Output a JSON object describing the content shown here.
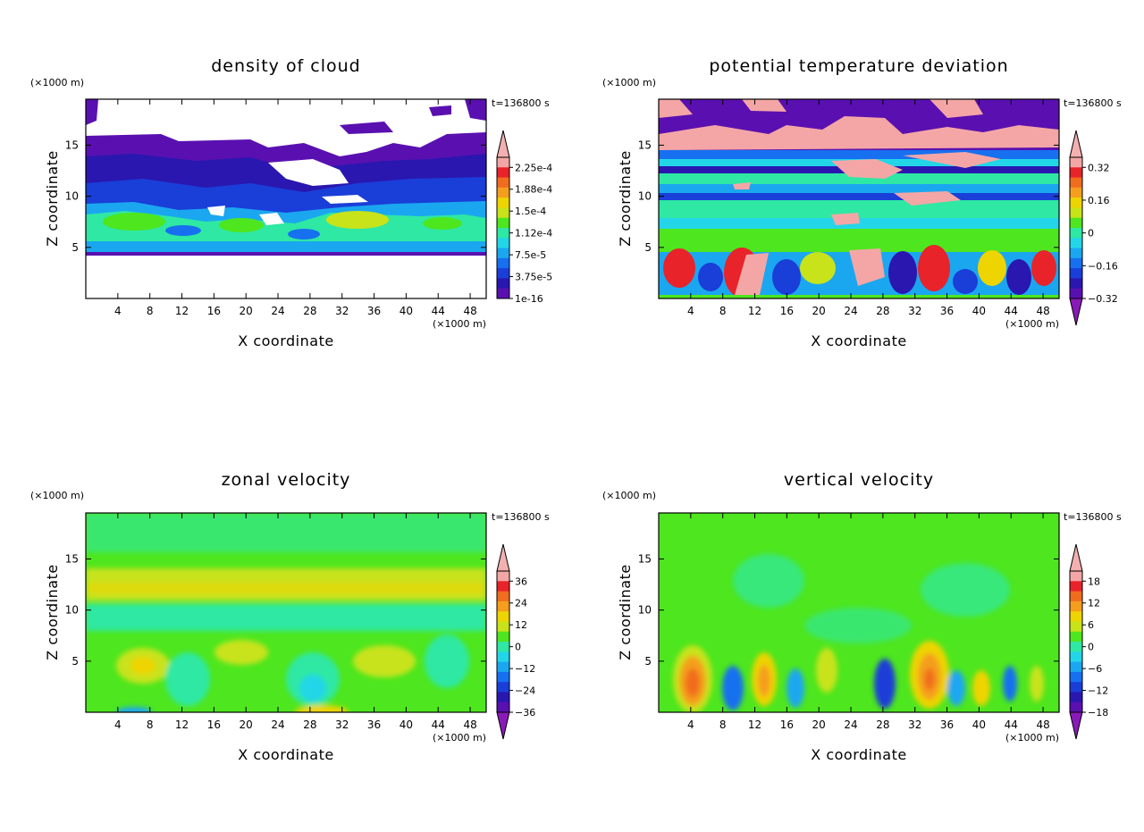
{
  "chart_data": [
    {
      "type": "heatmap",
      "title": "density of cloud",
      "xlabel": "X coordinate",
      "ylabel": "Z coordinate",
      "x_unit": "(×1000 m)",
      "y_unit": "(×1000 m)",
      "time_label": "t=136800 s",
      "x_ticks": [
        "4",
        "8",
        "12",
        "16",
        "20",
        "24",
        "28",
        "32",
        "36",
        "40",
        "44",
        "48"
      ],
      "y_ticks": [
        "5",
        "10",
        "15"
      ],
      "xlim": [
        0,
        50
      ],
      "ylim": [
        0,
        19.5
      ],
      "colorbar": {
        "labels": [
          "2.25e-4",
          "1.88e-4",
          "1.5e-4",
          "1.12e-4",
          "7.5e-5",
          "3.75e-5",
          "1e-16"
        ],
        "colors": [
          "#f4a6a6",
          "#e8232a",
          "#f06d1f",
          "#f59e1e",
          "#eed400",
          "#c8e31a",
          "#4ee61e",
          "#2ee8a3",
          "#22d6e8",
          "#1aa7f0",
          "#1670f0",
          "#1a3ed8",
          "#2a17b0",
          "#5a10b0"
        ],
        "top_triangle": "#f4b0b0",
        "bottom_triangle": null
      }
    },
    {
      "type": "heatmap",
      "title": "potential temperature deviation",
      "xlabel": "X coordinate",
      "ylabel": "Z coordinate",
      "x_unit": "(×1000 m)",
      "y_unit": "(×1000 m)",
      "time_label": "t=136800 s",
      "x_ticks": [
        "4",
        "8",
        "12",
        "16",
        "20",
        "24",
        "28",
        "32",
        "36",
        "40",
        "44",
        "48"
      ],
      "y_ticks": [
        "5",
        "10",
        "15"
      ],
      "xlim": [
        0,
        50
      ],
      "ylim": [
        0,
        19.5
      ],
      "colorbar": {
        "labels": [
          "0.32",
          "0.16",
          "0",
          "−0.16",
          "−0.32"
        ],
        "colors": [
          "#f4a6a6",
          "#e8232a",
          "#f06d1f",
          "#f59e1e",
          "#eed400",
          "#c8e31a",
          "#4ee61e",
          "#2ee8a3",
          "#22d6e8",
          "#1aa7f0",
          "#1670f0",
          "#1a3ed8",
          "#2a17b0",
          "#5a10b0"
        ],
        "top_triangle": "#f4b0b0",
        "bottom_triangle": "#8a1ab8"
      }
    },
    {
      "type": "heatmap",
      "title": "zonal velocity",
      "xlabel": "X coordinate",
      "ylabel": "Z coordinate",
      "x_unit": "(×1000 m)",
      "y_unit": "(×1000 m)",
      "time_label": "t=136800 s",
      "x_ticks": [
        "4",
        "8",
        "12",
        "16",
        "20",
        "24",
        "28",
        "32",
        "36",
        "40",
        "44",
        "48"
      ],
      "y_ticks": [
        "5",
        "10",
        "15"
      ],
      "xlim": [
        0,
        50
      ],
      "ylim": [
        0,
        19.5
      ],
      "colorbar": {
        "labels": [
          "36",
          "24",
          "12",
          "0",
          "−12",
          "−24",
          "−36"
        ],
        "colors": [
          "#f4a6a6",
          "#e8232a",
          "#f06d1f",
          "#f59e1e",
          "#eed400",
          "#c8e31a",
          "#4ee61e",
          "#2ee8a3",
          "#22d6e8",
          "#1aa7f0",
          "#1670f0",
          "#1a3ed8",
          "#2a17b0",
          "#5a10b0"
        ],
        "top_triangle": "#f4b0b0",
        "bottom_triangle": "#8a1ab8"
      }
    },
    {
      "type": "heatmap",
      "title": "vertical velocity",
      "xlabel": "X coordinate",
      "ylabel": "Z coordinate",
      "x_unit": "(×1000 m)",
      "y_unit": "(×1000 m)",
      "time_label": "t=136800 s",
      "x_ticks": [
        "4",
        "8",
        "12",
        "16",
        "20",
        "24",
        "28",
        "32",
        "36",
        "40",
        "44",
        "48"
      ],
      "y_ticks": [
        "5",
        "10",
        "15"
      ],
      "xlim": [
        0,
        50
      ],
      "ylim": [
        0,
        19.5
      ],
      "colorbar": {
        "labels": [
          "18",
          "12",
          "6",
          "0",
          "−6",
          "−12",
          "−18"
        ],
        "colors": [
          "#f4a6a6",
          "#e8232a",
          "#f06d1f",
          "#f59e1e",
          "#eed400",
          "#c8e31a",
          "#4ee61e",
          "#2ee8a3",
          "#22d6e8",
          "#1aa7f0",
          "#1670f0",
          "#1a3ed8",
          "#2a17b0",
          "#5a10b0"
        ],
        "top_triangle": "#f4b0b0",
        "bottom_triangle": "#8a1ab8"
      }
    }
  ]
}
